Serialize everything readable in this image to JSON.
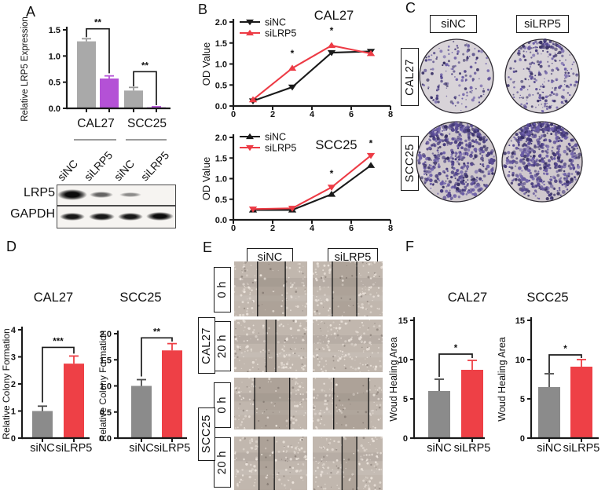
{
  "colors": {
    "sinc_gray_dark": "#8b8b8b",
    "sinc_gray_light": "#a9a9a9",
    "silrp5_red": "#ee4046",
    "silrp5_purple": "#b451d6",
    "line_black": "#1a1a1a",
    "line_red": "#ed3b45",
    "colony_stain": "#584a93"
  },
  "panels": {
    "a": {
      "letter": "A",
      "lane_labels": [
        "siNC",
        "siLRP5",
        "siNC",
        "siLRP5"
      ],
      "blot": {
        "rows": [
          {
            "label": "LRP5",
            "band_intensities": [
              1.0,
              0.62,
              0.45,
              0.0
            ]
          },
          {
            "label": "GAPDH",
            "band_intensities": [
              0.95,
              0.95,
              0.95,
              1.0
            ]
          }
        ]
      }
    },
    "b": {
      "letter": "B"
    },
    "c": {
      "letter": "C",
      "col_labels": [
        "siNC",
        "siLRP5"
      ],
      "row_labels": [
        "CAL27",
        "SCC25"
      ],
      "dishes": [
        {
          "cell_line": "CAL27",
          "condition": "siNC",
          "colony_count": 150,
          "top_cluster": false,
          "swirl": false
        },
        {
          "cell_line": "CAL27",
          "condition": "siLRP5",
          "colony_count": 215,
          "top_cluster": true,
          "swirl": false
        },
        {
          "cell_line": "SCC25",
          "condition": "siNC",
          "colony_count": 430,
          "top_cluster": true,
          "swirl": true
        },
        {
          "cell_line": "SCC25",
          "condition": "siLRP5",
          "colony_count": 465,
          "top_cluster": true,
          "swirl": true
        }
      ]
    },
    "d": {
      "letter": "D"
    },
    "e": {
      "letter": "E",
      "col_labels": [
        "siNC",
        "siLRP5"
      ],
      "row_groups": [
        {
          "cell_line": "CAL27",
          "times": [
            "0 h",
            "20 h"
          ]
        },
        {
          "cell_line": "SCC25",
          "times": [
            "0 h",
            "20 h"
          ]
        }
      ],
      "images": [
        {
          "cell_line": "CAL27",
          "time": "0 h",
          "condition": "siNC",
          "wound_edges": [
            0.32,
            0.7
          ]
        },
        {
          "cell_line": "CAL27",
          "time": "0 h",
          "condition": "siLRP5",
          "wound_edges": [
            0.28,
            0.63
          ]
        },
        {
          "cell_line": "CAL27",
          "time": "20 h",
          "condition": "siNC",
          "wound_edges": [
            0.44,
            0.57
          ]
        },
        {
          "cell_line": "CAL27",
          "time": "20 h",
          "condition": "siLRP5",
          "wound_edges": []
        },
        {
          "cell_line": "SCC25",
          "time": "0 h",
          "condition": "siNC",
          "wound_edges": [
            0.28,
            0.76
          ]
        },
        {
          "cell_line": "SCC25",
          "time": "0 h",
          "condition": "siLRP5",
          "wound_edges": [
            0.3,
            0.8
          ]
        },
        {
          "cell_line": "SCC25",
          "time": "20 h",
          "condition": "siNC",
          "wound_edges": [
            0.34,
            0.55
          ]
        },
        {
          "cell_line": "SCC25",
          "time": "20 h",
          "condition": "siLRP5",
          "wound_edges": [
            0.42,
            0.63
          ]
        }
      ]
    },
    "f": {
      "letter": "F"
    }
  },
  "chart_data": [
    {
      "id": "a-lrp5-expression",
      "type": "bar",
      "panel": "A",
      "ylabel": "Relative LRP5 Expression",
      "ylim": [
        0,
        1.5
      ],
      "yticks": [
        0,
        0.5,
        1,
        1.5
      ],
      "ytick_labels": [
        "0.0",
        "0.5",
        "1.0",
        "1.5"
      ],
      "group_labels": [
        "CAL27",
        "SCC25"
      ],
      "categories": [
        "siNC",
        "siLRP5",
        "siNC",
        "siLRP5"
      ],
      "values": [
        1.28,
        0.57,
        0.34,
        0.02
      ],
      "errors": [
        0.05,
        0.05,
        0.06,
        0.01
      ],
      "bar_colors": [
        "#a9a9a9",
        "#b451d6",
        "#a9a9a9",
        "#b451d6"
      ],
      "significance": [
        {
          "between": [
            0,
            1
          ],
          "label": "**"
        },
        {
          "between": [
            2,
            3
          ],
          "label": "**"
        }
      ]
    },
    {
      "id": "b-cck8-cal27",
      "type": "line",
      "panel": "B",
      "title": "CAL27",
      "ylabel": "OD Value",
      "xlim": [
        0,
        8
      ],
      "ylim": [
        0,
        2
      ],
      "xticks": [
        0,
        2,
        4,
        6,
        8
      ],
      "xtick_labels": [
        "0",
        "2",
        "4",
        "6",
        "8"
      ],
      "yticks": [
        0,
        0.5,
        1,
        1.5,
        2
      ],
      "ytick_labels": [
        "0.0",
        "0.5",
        "1.0",
        "1.5",
        "2.0"
      ],
      "x": [
        1,
        3,
        5,
        7
      ],
      "series": [
        {
          "name": "siNC",
          "color": "#1a1a1a",
          "marker": "triangle-down",
          "values": [
            0.12,
            0.45,
            1.27,
            1.3
          ]
        },
        {
          "name": "siLRP5",
          "color": "#ed3b45",
          "marker": "triangle-up",
          "values": [
            0.15,
            0.9,
            1.44,
            1.25
          ]
        }
      ],
      "annotations": [
        {
          "label": "*",
          "x": 3,
          "y": 1.18
        },
        {
          "label": "*",
          "x": 5,
          "y": 1.72
        }
      ],
      "legend_position": "top-left"
    },
    {
      "id": "b-cck8-scc25",
      "type": "line",
      "panel": "B",
      "title": "SCC25",
      "ylabel": "OD Value",
      "xlim": [
        0,
        8
      ],
      "ylim": [
        0,
        2
      ],
      "xticks": [
        0,
        2,
        4,
        6,
        8
      ],
      "xtick_labels": [
        "0",
        "2",
        "4",
        "6",
        "8"
      ],
      "yticks": [
        0,
        0.5,
        1,
        1.5,
        2
      ],
      "ytick_labels": [
        "0.0",
        "0.5",
        "1.0",
        "1.5",
        "2.0"
      ],
      "x": [
        1,
        3,
        5,
        7
      ],
      "series": [
        {
          "name": "siNC",
          "color": "#1a1a1a",
          "marker": "triangle-up",
          "values": [
            0.24,
            0.24,
            0.62,
            1.32
          ]
        },
        {
          "name": "siLRP5",
          "color": "#ed3b45",
          "marker": "triangle-down",
          "values": [
            0.26,
            0.28,
            0.79,
            1.56
          ]
        }
      ],
      "annotations": [
        {
          "label": "*",
          "x": 5,
          "y": 1.05
        },
        {
          "label": "*",
          "x": 7,
          "y": 1.78
        }
      ],
      "legend_position": "top-left"
    },
    {
      "id": "d-colony-cal27",
      "type": "bar",
      "panel": "D",
      "title": "CAL27",
      "ylabel": "Relative Colony Formation",
      "ylim": [
        0,
        4
      ],
      "yticks": [
        0,
        1,
        2,
        3,
        4
      ],
      "ytick_labels": [
        "0",
        "1",
        "2",
        "3",
        "4"
      ],
      "categories": [
        "siNC",
        "siLRP5"
      ],
      "values": [
        1.0,
        2.75
      ],
      "errors": [
        0.18,
        0.28
      ],
      "bar_colors": [
        "#8b8b8b",
        "#ee4046"
      ],
      "significance": [
        {
          "between": [
            0,
            1
          ],
          "label": "***"
        }
      ]
    },
    {
      "id": "d-colony-scc25",
      "type": "bar",
      "panel": "D",
      "title": "SCC25",
      "ylabel": "Relative Colony Formation",
      "ylim": [
        0,
        2
      ],
      "yticks": [
        0,
        0.5,
        1,
        1.5,
        2
      ],
      "ytick_labels": [
        "0.0",
        "0.5",
        "1.0",
        "1.5",
        "2.0"
      ],
      "categories": [
        "siNC",
        "siLRP5"
      ],
      "values": [
        1.0,
        1.68
      ],
      "errors": [
        0.12,
        0.13
      ],
      "bar_colors": [
        "#8b8b8b",
        "#ee4046"
      ],
      "significance": [
        {
          "between": [
            0,
            1
          ],
          "label": "**"
        }
      ]
    },
    {
      "id": "f-wound-cal27",
      "type": "bar",
      "panel": "F",
      "title": "CAL27",
      "ylabel": "Woud Healing Area",
      "ylim": [
        0,
        15
      ],
      "yticks": [
        0,
        5,
        10,
        15
      ],
      "ytick_labels": [
        "0",
        "5",
        "10",
        "15"
      ],
      "categories": [
        "siNC",
        "siLRP5"
      ],
      "values": [
        6.0,
        8.7
      ],
      "errors": [
        1.5,
        1.2
      ],
      "bar_colors": [
        "#8b8b8b",
        "#ee4046"
      ],
      "significance": [
        {
          "between": [
            0,
            1
          ],
          "label": "*"
        }
      ]
    },
    {
      "id": "f-wound-scc25",
      "type": "bar",
      "panel": "F",
      "title": "SCC25",
      "ylabel": "Woud Healing Area",
      "ylim": [
        0,
        15
      ],
      "yticks": [
        0,
        5,
        10,
        15
      ],
      "ytick_labels": [
        "0",
        "5",
        "10",
        "15"
      ],
      "categories": [
        "siNC",
        "siLRP5"
      ],
      "values": [
        6.5,
        9.1
      ],
      "errors": [
        1.7,
        0.9
      ],
      "bar_colors": [
        "#8b8b8b",
        "#ee4046"
      ],
      "significance": [
        {
          "between": [
            0,
            1
          ],
          "label": "*"
        }
      ]
    }
  ]
}
